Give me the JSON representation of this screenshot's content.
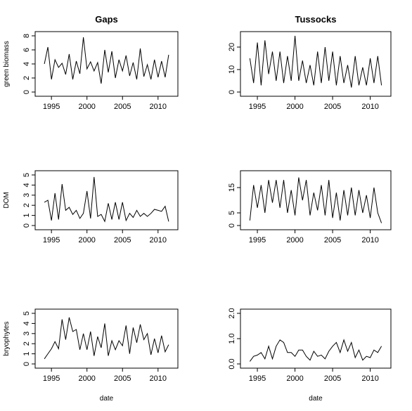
{
  "chart_data": [
    {
      "type": "line",
      "title": "Gaps",
      "xlabel": "",
      "ylabel": "green biomass",
      "xlim": [
        1993.5,
        2012
      ],
      "ylim": [
        0,
        8
      ],
      "x_ticks": [
        1995,
        2000,
        2005,
        2010
      ],
      "y_ticks": [
        0,
        2,
        4,
        6,
        8
      ],
      "x": [
        1994,
        1994.5,
        1995,
        1995.5,
        1996,
        1996.5,
        1997,
        1997.5,
        1998,
        1998.5,
        1999,
        1999.5,
        2000,
        2000.5,
        2001,
        2001.5,
        2002,
        2002.5,
        2003,
        2003.5,
        2004,
        2004.5,
        2005,
        2005.5,
        2006,
        2006.5,
        2007,
        2007.5,
        2008,
        2008.5,
        2009,
        2009.5,
        2010,
        2010.5,
        2011,
        2011.5
      ],
      "y": [
        4.0,
        6.4,
        1.8,
        4.6,
        3.5,
        4.1,
        2.5,
        5.4,
        1.8,
        4.4,
        2.6,
        7.8,
        3.3,
        4.3,
        3.0,
        4.2,
        1.2,
        6.0,
        2.8,
        5.8,
        2.0,
        4.6,
        3.0,
        5.2,
        2.3,
        4.2,
        1.8,
        6.2,
        2.2,
        3.9,
        1.8,
        4.6,
        2.1,
        4.4,
        2.1,
        5.3
      ]
    },
    {
      "type": "line",
      "title": "Tussocks",
      "xlabel": "",
      "ylabel": "",
      "xlim": [
        1993.5,
        2012
      ],
      "ylim": [
        0,
        25
      ],
      "x_ticks": [
        1995,
        2000,
        2005,
        2010
      ],
      "y_ticks": [
        0,
        10,
        20
      ],
      "x": [
        1994,
        1994.5,
        1995,
        1995.5,
        1996,
        1996.5,
        1997,
        1997.5,
        1998,
        1998.5,
        1999,
        1999.5,
        2000,
        2000.5,
        2001,
        2001.5,
        2002,
        2002.5,
        2003,
        2003.5,
        2004,
        2004.5,
        2005,
        2005.5,
        2006,
        2006.5,
        2007,
        2007.5,
        2008,
        2008.5,
        2009,
        2009.5,
        2010,
        2010.5,
        2011,
        2011.5
      ],
      "y": [
        15,
        4,
        22,
        3,
        23,
        8,
        18,
        5,
        18,
        4,
        16,
        5,
        25,
        5,
        14,
        4,
        12,
        3,
        18,
        4,
        20,
        5,
        18,
        3,
        16,
        4,
        12,
        2,
        16,
        3,
        11,
        3,
        15,
        4,
        16,
        3
      ]
    },
    {
      "type": "line",
      "title": "",
      "xlabel": "",
      "ylabel": "DOM",
      "xlim": [
        1993.5,
        2012
      ],
      "ylim": [
        0,
        5
      ],
      "x_ticks": [
        1995,
        2000,
        2005,
        2010
      ],
      "y_ticks": [
        0,
        1,
        2,
        3,
        4,
        5
      ],
      "x": [
        1994,
        1994.5,
        1995,
        1995.5,
        1996,
        1996.5,
        1997,
        1997.5,
        1998,
        1998.5,
        1999,
        1999.5,
        2000,
        2000.5,
        2001,
        2001.5,
        2002,
        2002.5,
        2003,
        2003.5,
        2004,
        2004.5,
        2005,
        2005.5,
        2006,
        2006.5,
        2007,
        2007.5,
        2008,
        2008.5,
        2009,
        2009.5,
        2010,
        2010.5,
        2011,
        2011.5
      ],
      "y": [
        2.3,
        2.5,
        0.5,
        3.2,
        0.6,
        4.1,
        1.5,
        1.8,
        1.1,
        1.5,
        0.7,
        1.2,
        3.4,
        0.7,
        4.8,
        0.9,
        1.1,
        0.4,
        2.2,
        0.6,
        2.3,
        0.6,
        2.3,
        0.5,
        1.2,
        0.8,
        1.5,
        0.9,
        1.2,
        0.9,
        1.2,
        1.6,
        1.5,
        1.4,
        1.9,
        0.4
      ]
    },
    {
      "type": "line",
      "title": "",
      "xlabel": "",
      "ylabel": "",
      "xlim": [
        1993.5,
        2012
      ],
      "ylim": [
        0,
        20
      ],
      "x_ticks": [
        1995,
        2000,
        2005,
        2010
      ],
      "y_ticks": [
        0,
        5,
        15
      ],
      "x": [
        1994,
        1994.5,
        1995,
        1995.5,
        1996,
        1996.5,
        1997,
        1997.5,
        1998,
        1998.5,
        1999,
        1999.5,
        2000,
        2000.5,
        2001,
        2001.5,
        2002,
        2002.5,
        2003,
        2003.5,
        2004,
        2004.5,
        2005,
        2005.5,
        2006,
        2006.5,
        2007,
        2007.5,
        2008,
        2008.5,
        2009,
        2009.5,
        2010,
        2010.5,
        2011,
        2011.5
      ],
      "y": [
        2,
        16,
        7,
        16,
        5,
        18,
        9,
        18,
        7,
        18,
        5,
        14,
        4,
        19,
        10,
        18,
        4,
        13,
        6,
        16,
        4,
        18,
        3,
        13,
        2,
        14,
        4,
        15,
        4,
        14,
        5,
        12,
        3,
        15,
        5,
        1
      ]
    },
    {
      "type": "line",
      "title": "",
      "xlabel": "date",
      "ylabel": "bryophytes",
      "xlim": [
        1993.5,
        2012
      ],
      "ylim": [
        0,
        5
      ],
      "x_ticks": [
        1995,
        2000,
        2005,
        2010
      ],
      "y_ticks": [
        0,
        1,
        2,
        3,
        4,
        5
      ],
      "x": [
        1994,
        1994.5,
        1995,
        1995.5,
        1996,
        1996.5,
        1997,
        1997.5,
        1998,
        1998.5,
        1999,
        1999.5,
        2000,
        2000.5,
        2001,
        2001.5,
        2002,
        2002.5,
        2003,
        2003.5,
        2004,
        2004.5,
        2005,
        2005.5,
        2006,
        2006.5,
        2007,
        2007.5,
        2008,
        2008.5,
        2009,
        2009.5,
        2010,
        2010.5,
        2011,
        2011.5
      ],
      "y": [
        0.5,
        1.0,
        1.5,
        2.2,
        1.5,
        4.4,
        2.4,
        4.6,
        3.2,
        3.4,
        1.4,
        3.0,
        1.4,
        3.2,
        0.8,
        2.7,
        1.6,
        4.0,
        0.8,
        2.3,
        1.4,
        2.3,
        1.8,
        3.8,
        1.0,
        3.6,
        2.1,
        3.9,
        2.4,
        3.0,
        0.9,
        2.5,
        1.1,
        2.8,
        1.2,
        1.9
      ]
    },
    {
      "type": "line",
      "title": "",
      "xlabel": "date",
      "ylabel": "",
      "xlim": [
        1993.5,
        2012
      ],
      "ylim": [
        0,
        2.0
      ],
      "x_ticks": [
        1995,
        2000,
        2005,
        2010
      ],
      "y_ticks": [
        0.0,
        1.0,
        2.0
      ],
      "y_tick_labels": [
        "0.0",
        "1.0",
        "2.0"
      ],
      "x": [
        1994,
        1994.5,
        1995,
        1995.5,
        1996,
        1996.5,
        1997,
        1997.5,
        1998,
        1998.5,
        1999,
        1999.5,
        2000,
        2000.5,
        2001,
        2001.5,
        2002,
        2002.5,
        2003,
        2003.5,
        2004,
        2004.5,
        2005,
        2005.5,
        2006,
        2006.5,
        2007,
        2007.5,
        2008,
        2008.5,
        2009,
        2009.5,
        2010,
        2010.5,
        2011,
        2011.5
      ],
      "y": [
        0.1,
        0.3,
        0.35,
        0.45,
        0.2,
        0.7,
        0.2,
        0.7,
        0.95,
        0.85,
        0.45,
        0.45,
        0.3,
        0.55,
        0.55,
        0.3,
        0.15,
        0.5,
        0.3,
        0.35,
        0.2,
        0.5,
        0.7,
        0.85,
        0.45,
        0.95,
        0.5,
        0.85,
        0.25,
        0.55,
        0.15,
        0.3,
        0.25,
        0.55,
        0.45,
        0.7
      ]
    }
  ]
}
